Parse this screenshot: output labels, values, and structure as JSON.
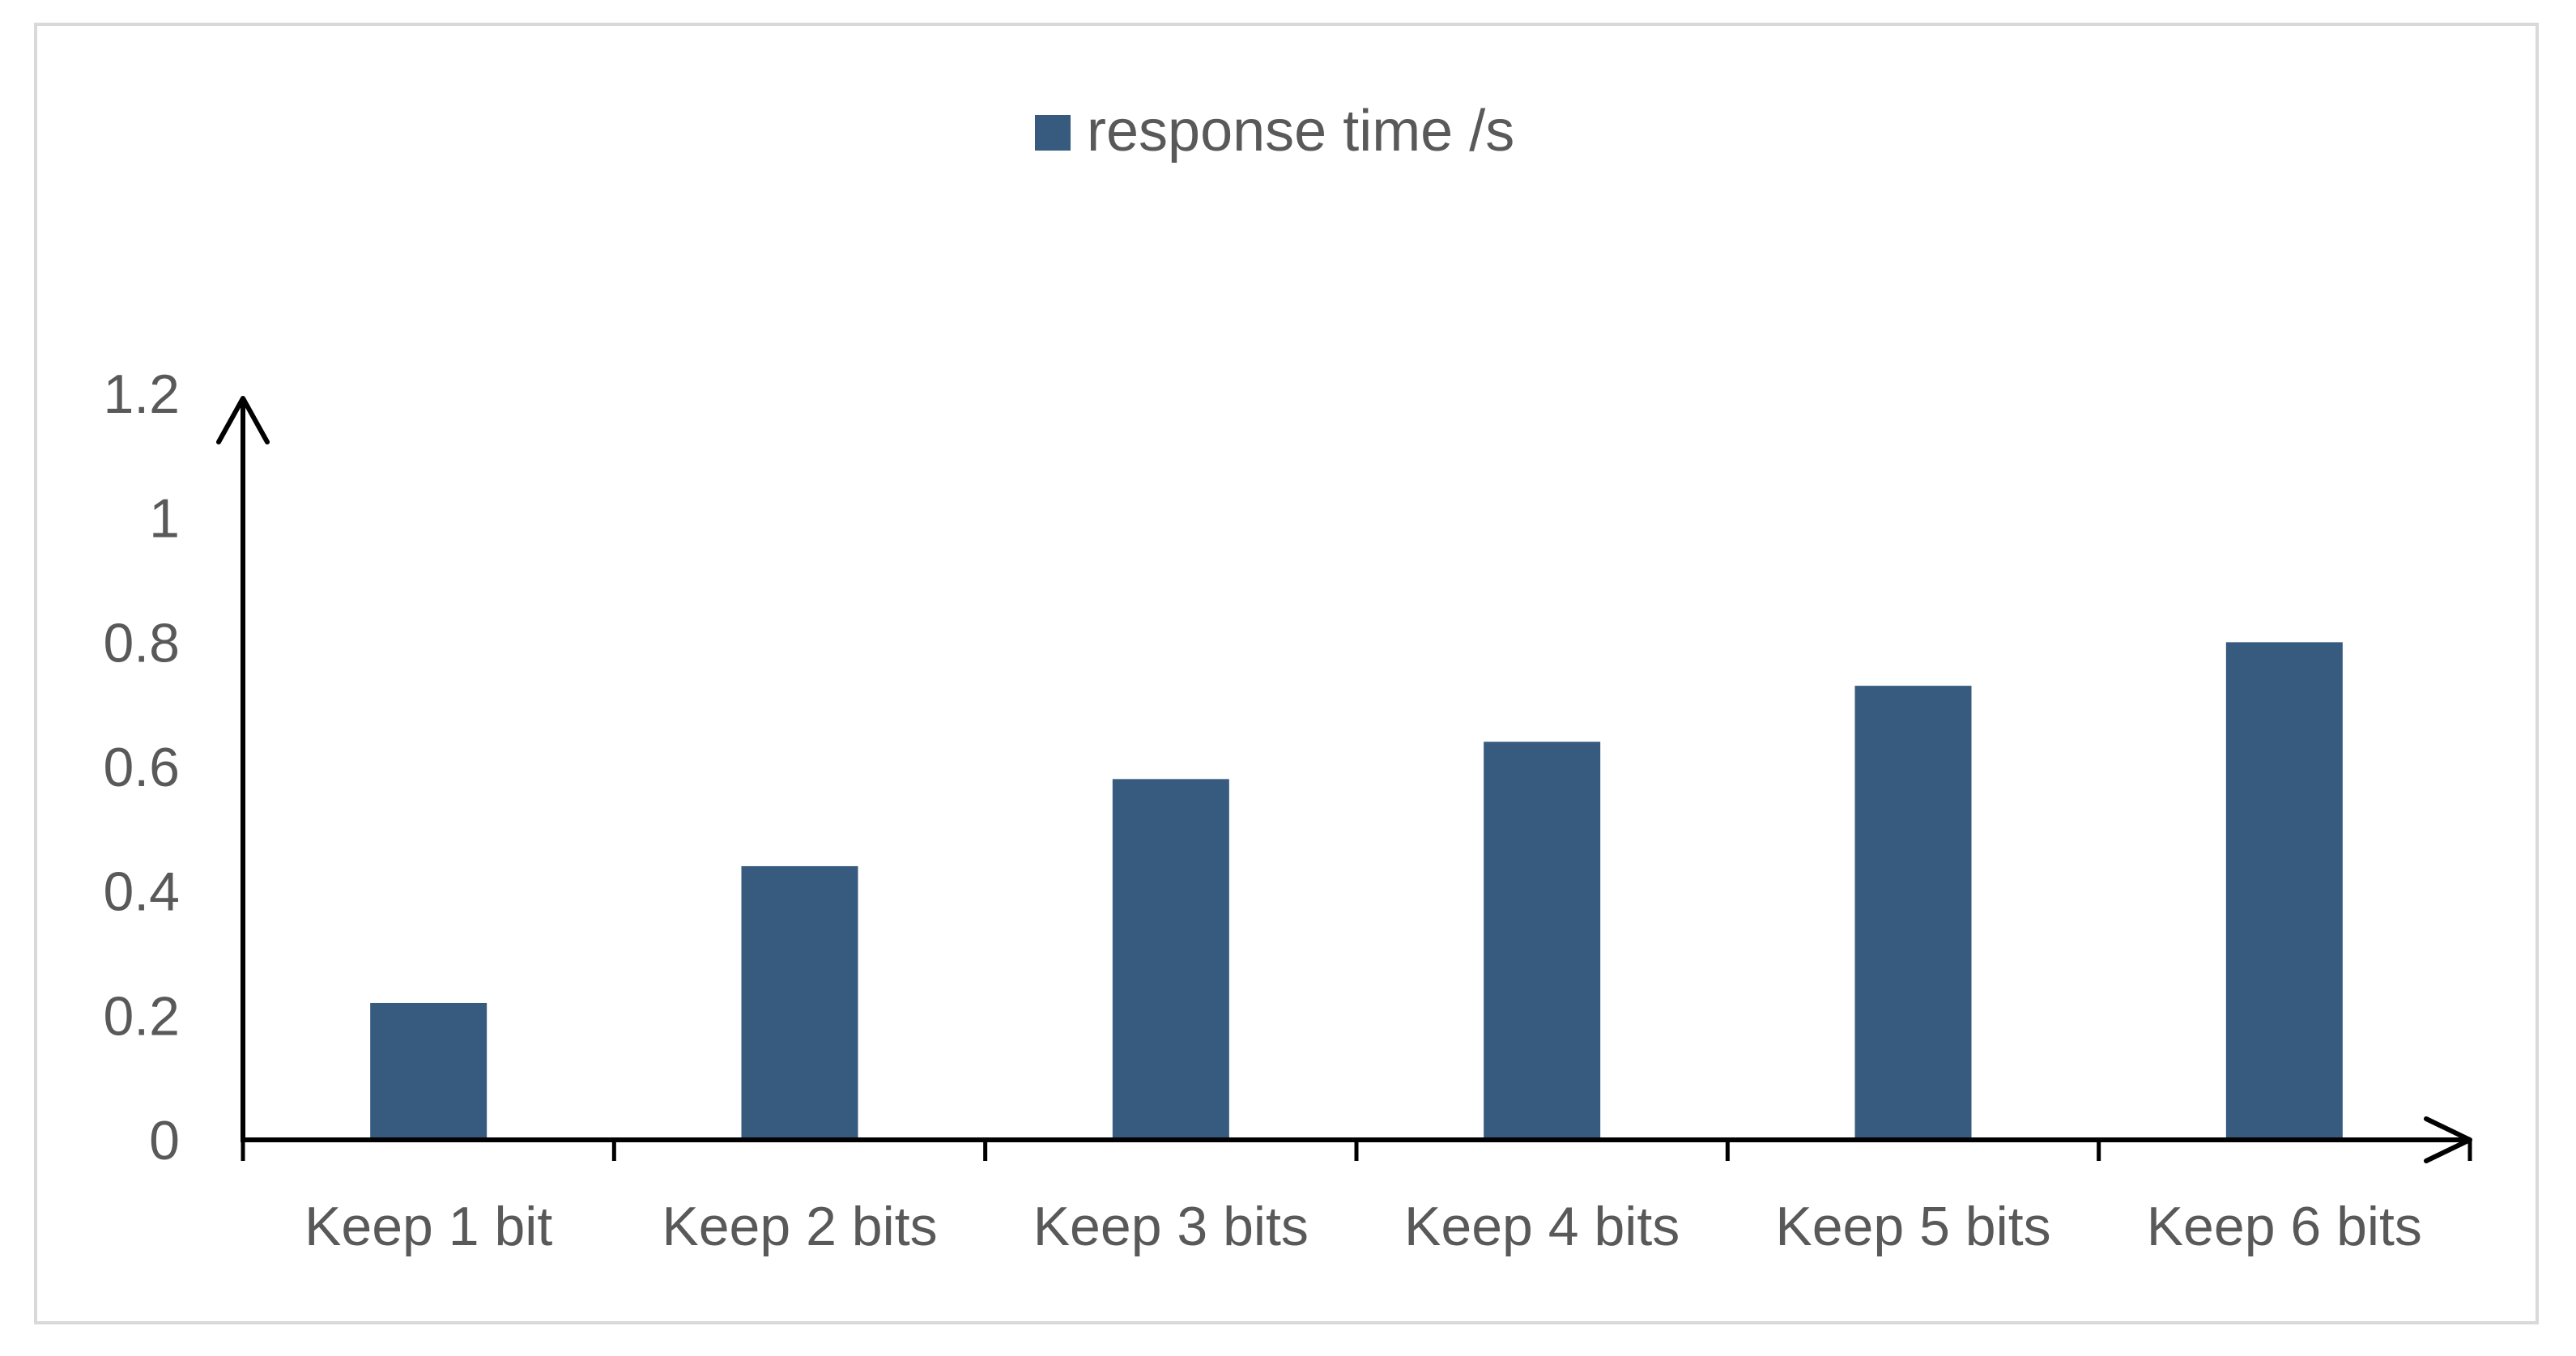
{
  "chart_data": {
    "type": "bar",
    "title": "",
    "xlabel": "",
    "ylabel": "",
    "categories": [
      "Keep 1 bit",
      "Keep 2 bits",
      "Keep 3 bits",
      "Keep 4 bits",
      "Keep 5 bits",
      "Keep 6 bits"
    ],
    "series": [
      {
        "name": "response time /s",
        "values": [
          0.22,
          0.44,
          0.58,
          0.64,
          0.73,
          0.8
        ]
      }
    ],
    "ylim": [
      0,
      1.2
    ],
    "yticks": [
      "0",
      "0.2",
      "0.4",
      "0.6",
      "0.8",
      "1",
      "1.2"
    ],
    "grid": false,
    "legend_position": "top",
    "colors": {
      "bar": "#375A7F",
      "axis": "#000000",
      "text": "#595959",
      "frame": "#D9D9D9"
    }
  }
}
